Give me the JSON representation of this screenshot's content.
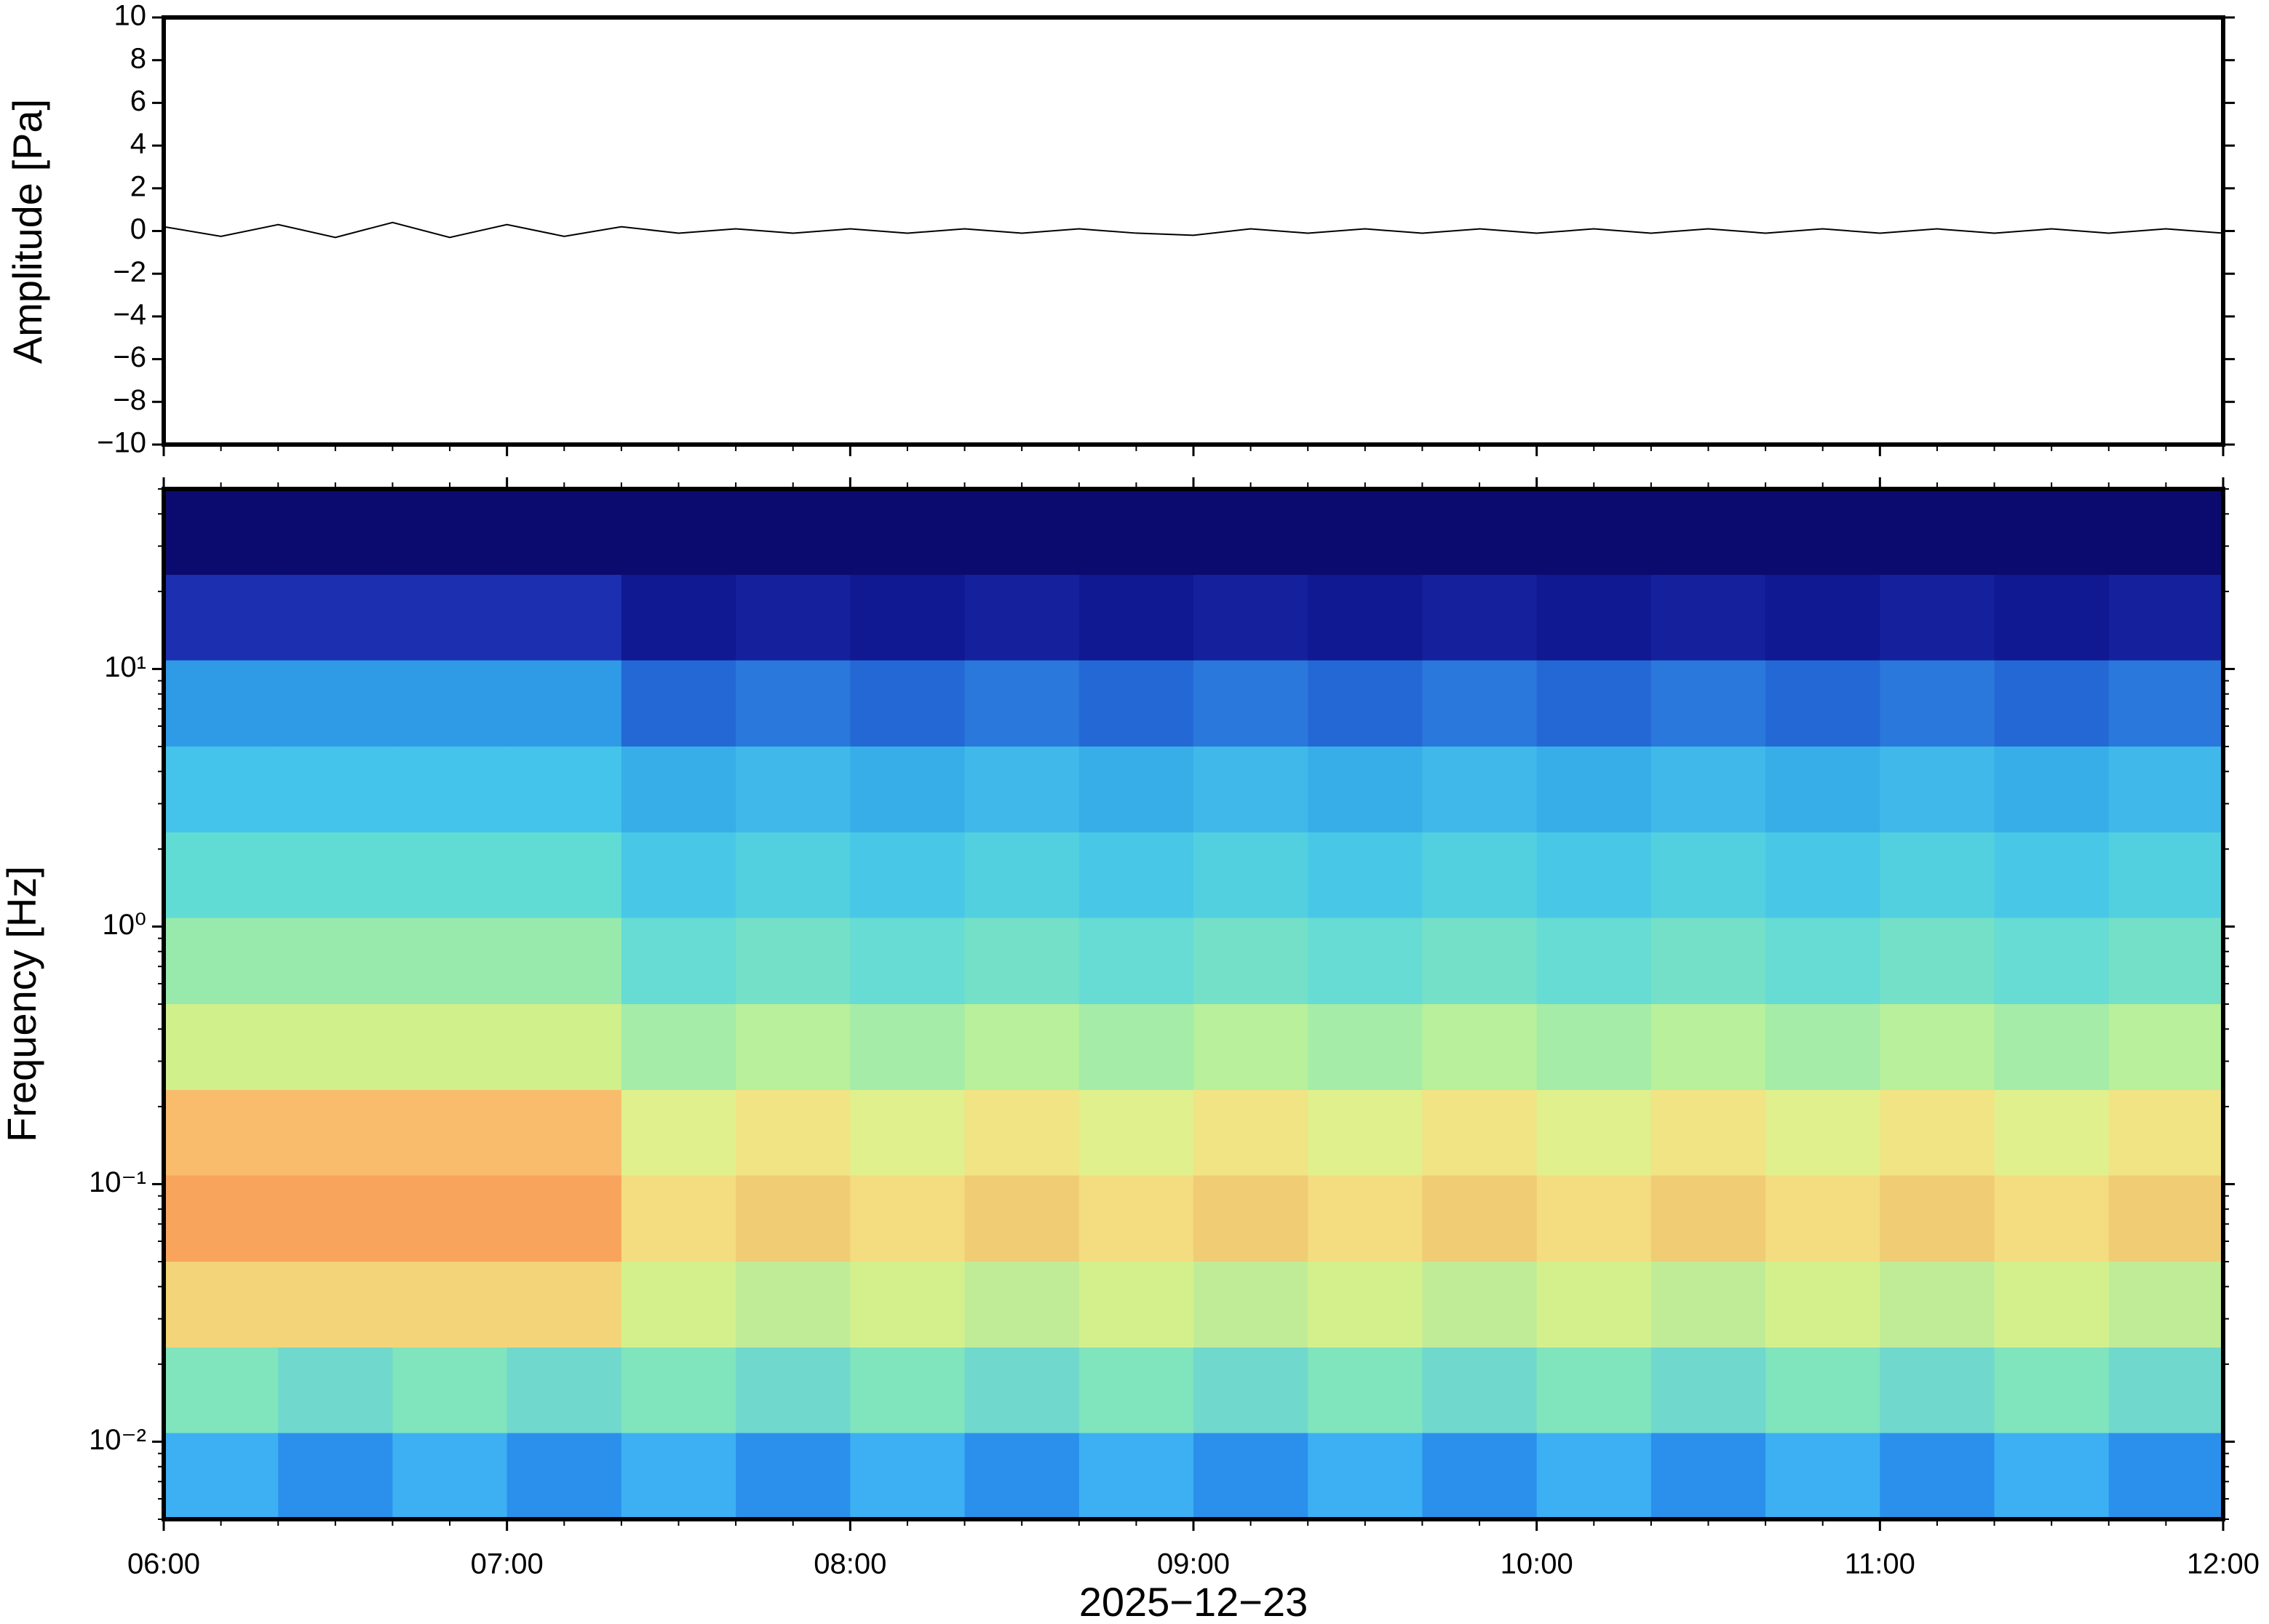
{
  "chart_data": [
    {
      "type": "line",
      "y_label": "Amplitude [Pa]",
      "xlim": [
        "06:00",
        "12:00"
      ],
      "xticks": [
        "06:00",
        "07:00",
        "08:00",
        "09:00",
        "10:00",
        "11:00",
        "12:00"
      ],
      "x_minor_interval": "00:10",
      "ylim": [
        -10,
        10
      ],
      "yticks": [
        {
          "value": -10,
          "label": "−10"
        },
        {
          "value": -8,
          "label": "−8"
        },
        {
          "value": -6,
          "label": "−6"
        },
        {
          "value": -4,
          "label": "−4"
        },
        {
          "value": -2,
          "label": "−2"
        },
        0,
        2,
        4,
        6,
        8,
        10
      ],
      "x": [
        "06:00",
        "06:10",
        "06:20",
        "06:30",
        "06:40",
        "06:50",
        "07:00",
        "07:10",
        "07:20",
        "07:30",
        "07:40",
        "07:50",
        "08:00",
        "08:10",
        "08:20",
        "08:30",
        "08:40",
        "08:50",
        "09:00",
        "09:10",
        "09:20",
        "09:30",
        "09:40",
        "09:50",
        "10:00",
        "10:10",
        "10:20",
        "10:30",
        "10:40",
        "10:50",
        "11:00",
        "11:10",
        "11:20",
        "11:30",
        "11:40",
        "11:50",
        "12:00"
      ],
      "series": [
        {
          "color": "#000000",
          "values": [
            0.2,
            -0.25,
            0.3,
            -0.3,
            0.4,
            -0.3,
            0.3,
            -0.25,
            0.2,
            -0.1,
            0.1,
            -0.1,
            0.1,
            -0.1,
            0.1,
            -0.1,
            0.1,
            -0.1,
            -0.2,
            0.1,
            -0.1,
            0.1,
            -0.1,
            0.1,
            -0.1,
            0.1,
            -0.1,
            0.1,
            -0.1,
            0.1,
            -0.1,
            0.1,
            -0.1,
            0.1,
            -0.1,
            0.1,
            -0.1
          ]
        }
      ]
    },
    {
      "type": "heatmap",
      "y_label": "Frequency [Hz]",
      "x_label": "2025−12−23",
      "xlim": [
        "06:00",
        "12:00"
      ],
      "xticks": [
        "06:00",
        "07:00",
        "08:00",
        "09:00",
        "10:00",
        "11:00",
        "12:00"
      ],
      "x_minor_interval": "00:10",
      "ylim": [
        0.005,
        50
      ],
      "log_y": true,
      "minor_ticks": true,
      "yticks": [
        {
          "value": 0.01,
          "label": "10⁻²"
        },
        {
          "value": 0.1,
          "label": "10⁻¹"
        },
        {
          "value": 1,
          "label": "10⁰"
        },
        {
          "value": 10,
          "label": "10¹"
        }
      ],
      "x_bins": [
        "06:00",
        "06:20",
        "06:40",
        "07:00",
        "07:20",
        "07:40",
        "08:00",
        "08:20",
        "08:40",
        "09:00",
        "09:20",
        "09:40",
        "10:00",
        "10:20",
        "10:40",
        "11:00",
        "11:20",
        "11:40",
        "12:00"
      ],
      "y_bins": [
        50,
        23.2,
        10.8,
        5,
        2.32,
        1.08,
        0.5,
        0.232,
        0.108,
        0.05,
        0.0232,
        0.0108,
        0.005
      ],
      "colors": [
        [
          "#0b0a6e",
          "#0b0a6e",
          "#0b0a6e",
          "#0b0a6e",
          "#0b0a6e",
          "#0b0a6e",
          "#0b0a6e",
          "#0b0a6e",
          "#0b0a6e",
          "#0b0a6e",
          "#0b0a6e",
          "#0b0a6e",
          "#0b0a6e",
          "#0b0a6e",
          "#0b0a6e",
          "#0b0a6e",
          "#0b0a6e",
          "#0b0a6e"
        ],
        [
          "#1c2fb0",
          "#1c2fb0",
          "#1c2fb0",
          "#1c2fb0",
          "#101892",
          "#14209c",
          "#101892",
          "#14209c",
          "#101892",
          "#14209c",
          "#101892",
          "#14209c",
          "#101892",
          "#14209c",
          "#101892",
          "#14209c",
          "#101892",
          "#14209c"
        ],
        [
          "#2f9ae6",
          "#2f9ae6",
          "#2f9ae6",
          "#2f9ae6",
          "#2468d6",
          "#2a78dc",
          "#2468d6",
          "#2a78dc",
          "#2468d6",
          "#2a78dc",
          "#2468d6",
          "#2a78dc",
          "#2468d6",
          "#2a78dc",
          "#2468d6",
          "#2a78dc",
          "#2468d6",
          "#2a78dc"
        ],
        [
          "#44c4ea",
          "#44c4ea",
          "#44c4ea",
          "#44c4ea",
          "#38aee8",
          "#40b8ea",
          "#38aee8",
          "#40b8ea",
          "#38aee8",
          "#40b8ea",
          "#38aee8",
          "#40b8ea",
          "#38aee8",
          "#40b8ea",
          "#38aee8",
          "#40b8ea",
          "#38aee8",
          "#40b8ea"
        ],
        [
          "#60dcd4",
          "#60dcd4",
          "#60dcd4",
          "#60dcd4",
          "#48c8e6",
          "#52d0e0",
          "#48c8e6",
          "#52d0e0",
          "#48c8e6",
          "#52d0e0",
          "#48c8e6",
          "#52d0e0",
          "#48c8e6",
          "#52d0e0",
          "#48c8e6",
          "#52d0e0",
          "#48c8e6",
          "#52d0e0"
        ],
        [
          "#98eaac",
          "#98eaac",
          "#98eaac",
          "#98eaac",
          "#66dcd4",
          "#74e0c8",
          "#66dcd4",
          "#74e0c8",
          "#66dcd4",
          "#74e0c8",
          "#66dcd4",
          "#74e0c8",
          "#66dcd4",
          "#74e0c8",
          "#66dcd4",
          "#74e0c8",
          "#66dcd4",
          "#74e0c8"
        ],
        [
          "#d0f08c",
          "#d0f08c",
          "#d0f08c",
          "#d0f08c",
          "#a4eca8",
          "#b8f09c",
          "#a4eca8",
          "#b8f09c",
          "#a4eca8",
          "#b8f09c",
          "#a4eca8",
          "#b8f09c",
          "#a4eca8",
          "#b8f09c",
          "#a4eca8",
          "#b8f09c",
          "#a4eca8",
          "#b8f09c"
        ],
        [
          "#f8bc6c",
          "#f8bc6c",
          "#f8bc6c",
          "#f8bc6c",
          "#e0f08c",
          "#f0e484",
          "#e0f08c",
          "#f0e484",
          "#e0f08c",
          "#f0e484",
          "#e0f08c",
          "#f0e484",
          "#e0f08c",
          "#f0e484",
          "#e0f08c",
          "#f0e484",
          "#e0f08c",
          "#f0e484"
        ],
        [
          "#f8a45c",
          "#f8a45c",
          "#f8a45c",
          "#f8a45c",
          "#f4dc80",
          "#f0cc74",
          "#f4dc80",
          "#f0cc74",
          "#f4dc80",
          "#f0cc74",
          "#f4dc80",
          "#f0cc74",
          "#f4dc80",
          "#f0cc74",
          "#f4dc80",
          "#f0cc74",
          "#f4dc80",
          "#f0cc74"
        ],
        [
          "#f4d478",
          "#f4d478",
          "#f4d478",
          "#f4d478",
          "#d4f08c",
          "#c0ec98",
          "#d4f08c",
          "#c0ec98",
          "#d4f08c",
          "#c0ec98",
          "#d4f08c",
          "#c0ec98",
          "#d4f08c",
          "#c0ec98",
          "#d4f08c",
          "#c0ec98",
          "#d4f08c",
          "#c0ec98"
        ],
        [
          "#80e4bc",
          "#70d8cc",
          "#80e4bc",
          "#70d8cc",
          "#80e4bc",
          "#70d8cc",
          "#80e4bc",
          "#70d8cc",
          "#80e4bc",
          "#70d8cc",
          "#80e4bc",
          "#70d8cc",
          "#80e4bc",
          "#70d8cc",
          "#80e4bc",
          "#70d8cc",
          "#80e4bc",
          "#70d8cc"
        ],
        [
          "#3cb0f2",
          "#2a90ec",
          "#3cb0f2",
          "#2a90ec",
          "#3cb0f2",
          "#2a90ec",
          "#3cb0f2",
          "#2a90ec",
          "#3cb0f2",
          "#2a90ec",
          "#3cb0f2",
          "#2a90ec",
          "#3cb0f2",
          "#2a90ec",
          "#3cb0f2",
          "#2a90ec",
          "#3cb0f2",
          "#2a90ec"
        ]
      ]
    }
  ]
}
